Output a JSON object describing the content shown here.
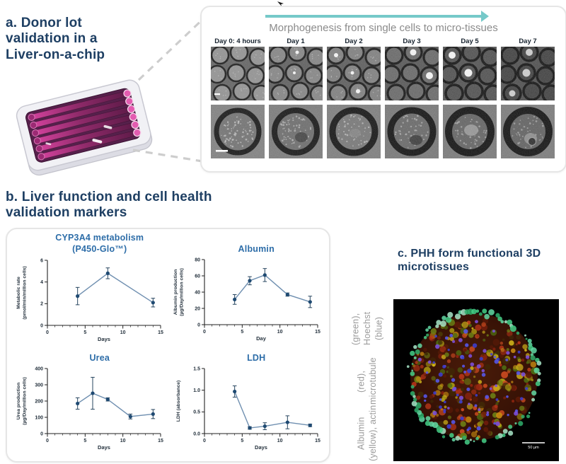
{
  "panel_a": {
    "title": "a. Donor lot validation in a Liver-on-a-chip"
  },
  "morphogenesis": {
    "title": "Morphogenesis from single cells to micro-tissues",
    "day_labels": [
      "Day 0: 4 hours",
      "Day 1",
      "Day 2",
      "Day 3",
      "Day 5",
      "Day 7"
    ]
  },
  "panel_b": {
    "title": "b. Liver function and cell health validation markers"
  },
  "panel_c": {
    "title": "c. PHH form functional 3D microtissues",
    "caption_lines": [
      "Albumin (yellow), actin",
      "(red), microtubule",
      "(green), Hoechst (blue)"
    ],
    "scale_bar_label": "50 µm"
  },
  "colors": {
    "heading_navy": "#1e3f63",
    "chart_title_blue": "#2d6da8",
    "line_blue": "#6f8fb0",
    "marker_navy": "#1f4a72",
    "arrow_teal": "#76c9c9",
    "subtitle_gray": "#8b8b8b",
    "caption_gray": "#9b9b9b",
    "panel_border": "#e6e6e6"
  },
  "chart_data": [
    {
      "type": "line",
      "title_lines": [
        "CYP3A4 metabolism",
        "(P450-Glo™)"
      ],
      "xlabel": "Days",
      "ylabel_lines": [
        "Metabolic rate",
        "(pmol/min/million cells)"
      ],
      "xlim": [
        0,
        15
      ],
      "ylim": [
        0,
        6
      ],
      "xticks": [
        0,
        5,
        10,
        15
      ],
      "yticks": [
        0,
        2,
        4,
        6
      ],
      "x": [
        4,
        8,
        14
      ],
      "y": [
        2.7,
        4.8,
        2.1
      ],
      "yerr": [
        0.8,
        0.5,
        0.4
      ]
    },
    {
      "type": "line",
      "title_lines": [
        "Albumin"
      ],
      "xlabel": "Day",
      "ylabel_lines": [
        "Albumin production",
        "(µg/Day/million cells)"
      ],
      "xlim": [
        0,
        15
      ],
      "ylim": [
        0,
        80
      ],
      "xticks": [
        0,
        5,
        10,
        15
      ],
      "yticks": [
        0,
        20,
        40,
        60,
        80
      ],
      "x": [
        4,
        6,
        8,
        11,
        14
      ],
      "y": [
        31,
        54,
        61,
        37,
        28
      ],
      "yerr": [
        6,
        5,
        8,
        2,
        7
      ]
    },
    {
      "type": "line",
      "title_lines": [
        "Urea"
      ],
      "xlabel": "Days",
      "ylabel_lines": [
        "Urea production",
        "(µg/Day/million cells)"
      ],
      "xlim": [
        0,
        15
      ],
      "ylim": [
        0,
        400
      ],
      "xticks": [
        0,
        5,
        10,
        15
      ],
      "yticks": [
        0,
        100,
        200,
        300,
        400
      ],
      "x": [
        4,
        6,
        8,
        11,
        14
      ],
      "y": [
        185,
        248,
        210,
        105,
        120
      ],
      "yerr": [
        35,
        98,
        10,
        15,
        28
      ]
    },
    {
      "type": "line",
      "title_lines": [
        "LDH"
      ],
      "xlabel": "Days",
      "ylabel_lines": [
        "LDH (absorbance)"
      ],
      "xlim": [
        0,
        15
      ],
      "ylim": [
        0,
        1.5
      ],
      "xticks": [
        0,
        5,
        10,
        15
      ],
      "yticks": [
        0,
        0.5,
        1,
        1.5
      ],
      "ytick_labels": [
        "0.0",
        "0.5",
        "1.0",
        "1.5"
      ],
      "x": [
        4,
        6,
        8,
        11,
        14
      ],
      "y": [
        0.97,
        0.13,
        0.17,
        0.26,
        0.19
      ],
      "yerr": [
        0.13,
        0.03,
        0.08,
        0.15,
        0.03
      ]
    }
  ]
}
